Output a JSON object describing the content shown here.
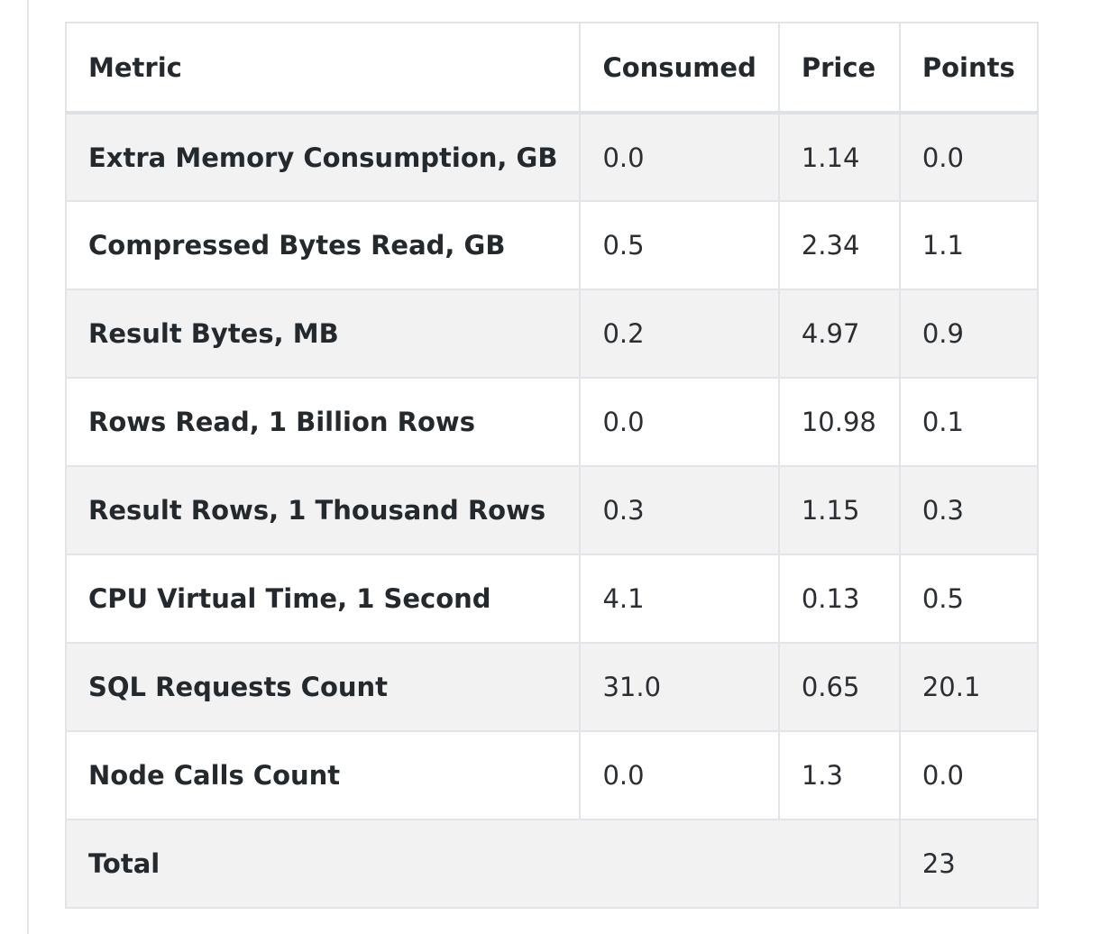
{
  "table": {
    "headers": {
      "metric": "Metric",
      "consumed": "Consumed",
      "price": "Price",
      "points": "Points"
    },
    "rows": [
      {
        "metric": "Extra Memory Consumption, GB",
        "consumed": "0.0",
        "price": "1.14",
        "points": "0.0"
      },
      {
        "metric": "Compressed Bytes Read, GB",
        "consumed": "0.5",
        "price": "2.34",
        "points": "1.1"
      },
      {
        "metric": "Result Bytes, MB",
        "consumed": "0.2",
        "price": "4.97",
        "points": "0.9"
      },
      {
        "metric": "Rows Read, 1 Billion Rows",
        "consumed": "0.0",
        "price": "10.98",
        "points": "0.1"
      },
      {
        "metric": "Result Rows, 1 Thousand Rows",
        "consumed": "0.3",
        "price": "1.15",
        "points": "0.3"
      },
      {
        "metric": "CPU Virtual Time, 1 Second",
        "consumed": "4.1",
        "price": "0.13",
        "points": "0.5"
      },
      {
        "metric": "SQL Requests Count",
        "consumed": "31.0",
        "price": "0.65",
        "points": "20.1"
      },
      {
        "metric": "Node Calls Count",
        "consumed": "0.0",
        "price": "1.3",
        "points": "0.0"
      }
    ],
    "total": {
      "label": "Total",
      "points": "23"
    }
  }
}
